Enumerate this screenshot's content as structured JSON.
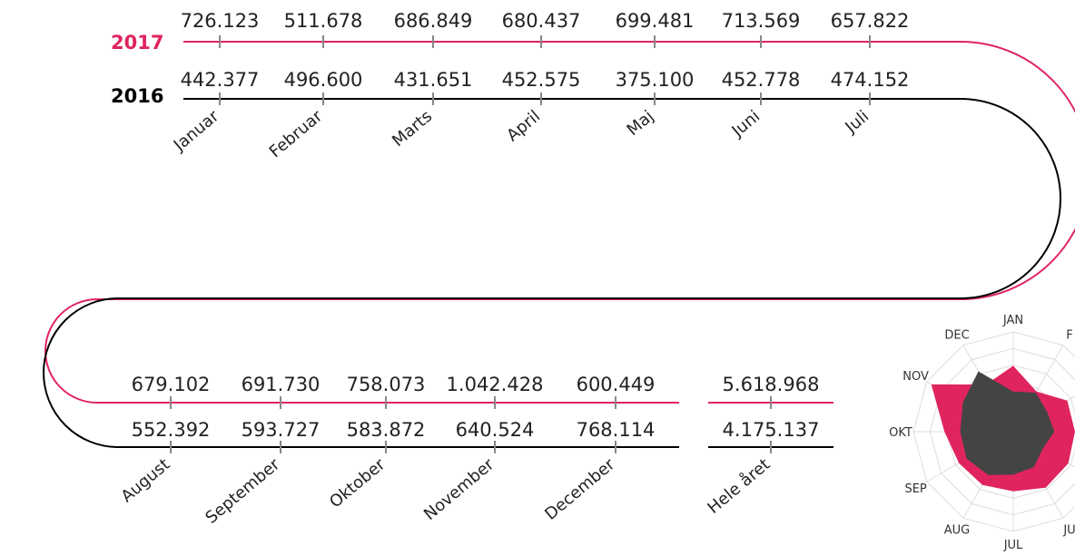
{
  "colors": {
    "y2017": "#e0245e",
    "y2016": "#000000",
    "y2016_radar": "#444444",
    "ticks": "#888888",
    "grid": "#dddddd"
  },
  "chart_data": [
    {
      "type": "line",
      "series_labels": {
        "y2017": "2017",
        "y2016": "2016"
      },
      "months": [
        "Januar",
        "Februar",
        "Marts",
        "April",
        "Maj",
        "Juni",
        "Juli",
        "August",
        "September",
        "Oktober",
        "November",
        "December"
      ],
      "values_2017": [
        "726.123",
        "511.678",
        "686.849",
        "680.437",
        "699.481",
        "713.569",
        "657.822",
        "679.102",
        "691.730",
        "758.073",
        "1.042.428",
        "600.449"
      ],
      "values_2016": [
        "442.377",
        "496.600",
        "431.651",
        "452.575",
        "375.100",
        "452.778",
        "474.152",
        "552.392",
        "593.727",
        "583.872",
        "640.524",
        "768.114"
      ],
      "total": {
        "label": "Hele året",
        "value_2017": "5.618.968",
        "value_2016": "4.175.137"
      }
    },
    {
      "type": "radar",
      "axes": [
        "JAN",
        "F",
        "",
        "",
        "",
        "JU",
        "JUL",
        "AUG",
        "SEP",
        "OKT",
        "NOV",
        "DEC"
      ],
      "series": [
        {
          "key": "y2017",
          "values": [
            726123,
            511678,
            686849,
            680437,
            699481,
            713569,
            657822,
            679102,
            691730,
            758073,
            1042428,
            600449
          ]
        },
        {
          "key": "y2016",
          "values": [
            442377,
            496600,
            431651,
            452575,
            375100,
            452778,
            474152,
            552392,
            593727,
            583872,
            640524,
            768114
          ]
        }
      ],
      "max": 1100000,
      "rings": 6
    }
  ]
}
